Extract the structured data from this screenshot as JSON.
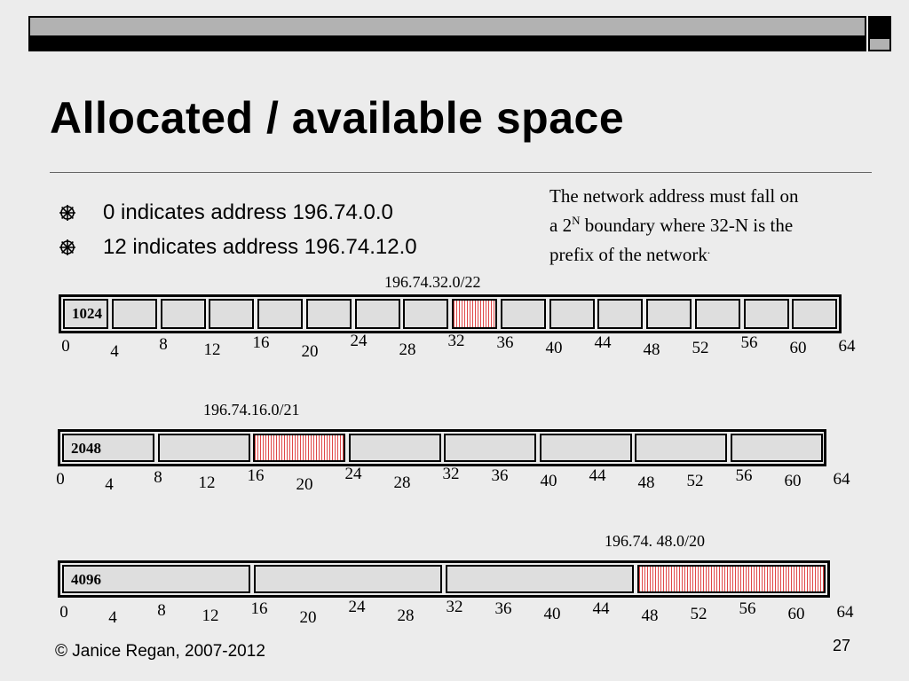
{
  "slide": {
    "title": "Allocated / available space",
    "bullets": [
      "0 indicates address 196.74.0.0",
      "12 indicates address 196.74.12.0"
    ],
    "note": {
      "line1": "The network address must fall on",
      "line2_prefix": "a 2",
      "line2_sup": "N",
      "line2_suffix": " boundary where 32-N is the",
      "line3": "prefix of the network",
      "line3_end": "."
    },
    "footer": "© Janice Regan, 2007-2012",
    "page_number": "27",
    "bullet_icon": "snowflake-bullet-icon"
  },
  "diagrams": [
    {
      "caption": "196.74.32.0/22",
      "block_label": "1024",
      "block_size": 4,
      "highlight": [
        32,
        36
      ],
      "ticks": [
        "0",
        "4",
        "8",
        "12",
        "16",
        "20",
        "24",
        "28",
        "32",
        "36",
        "40",
        "44",
        "48",
        "52",
        "56",
        "60",
        "64"
      ]
    },
    {
      "caption": "196.74.16.0/21",
      "block_label": "2048",
      "block_size": 8,
      "highlight": [
        16,
        24
      ],
      "ticks": [
        "0",
        "4",
        "8",
        "12",
        "16",
        "20",
        "24",
        "28",
        "32",
        "36",
        "40",
        "44",
        "48",
        "52",
        "56",
        "60",
        "64"
      ]
    },
    {
      "caption": "196.74. 48.0/20",
      "block_label": "4096",
      "block_size": 16,
      "highlight": [
        48,
        64
      ],
      "ticks": [
        "0",
        "4",
        "8",
        "12",
        "16",
        "20",
        "24",
        "28",
        "32",
        "36",
        "40",
        "44",
        "48",
        "52",
        "56",
        "60",
        "64"
      ]
    }
  ],
  "colors": {
    "highlight_stripe": "#e04848",
    "cell_fill": "#dedede",
    "background": "#ececec"
  }
}
